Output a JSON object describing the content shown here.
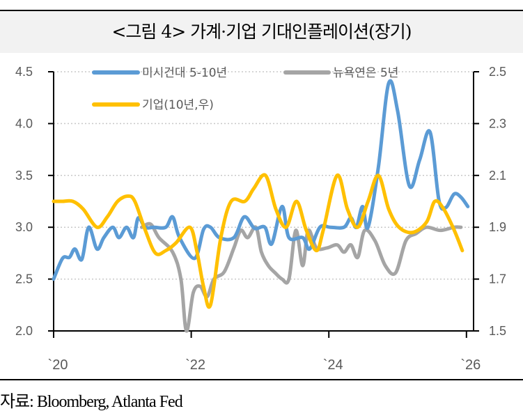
{
  "title": "<그림 4> 가계·기업 기대인플레이션(장기)",
  "source": "자료: Bloomberg, Atlanta Fed",
  "chart_data": {
    "type": "line",
    "title": "<그림 4> 가계·기업 기대인플레이션(장기)",
    "xlabel": "",
    "ylabel": "",
    "x_ticks": [
      {
        "value": 2020,
        "label": "`20"
      },
      {
        "value": 2022,
        "label": "`22"
      },
      {
        "value": 2024,
        "label": "`24"
      },
      {
        "value": 2026,
        "label": "`26"
      }
    ],
    "xlim": [
      2020,
      2026.05
    ],
    "ylim_left": [
      2.0,
      4.5
    ],
    "ylim_right": [
      1.5,
      2.5
    ],
    "y_ticks_left": [
      "2.0",
      "2.5",
      "3.0",
      "3.5",
      "4.0",
      "4.5"
    ],
    "y_ticks_right": [
      "1.5",
      "1.7",
      "1.9",
      "2.1",
      "2.3",
      "2.5"
    ],
    "grid": "horizontal-dotted",
    "legend_placement": "top",
    "series": [
      {
        "name": "미시건대 5-10년",
        "axis": "left",
        "color": "#5B9BD5",
        "x": [
          2020.0,
          2020.13,
          2020.23,
          2020.31,
          2020.41,
          2020.51,
          2020.63,
          2020.73,
          2020.86,
          2020.95,
          2021.06,
          2021.16,
          2021.23,
          2021.33,
          2021.46,
          2021.63,
          2021.73,
          2021.83,
          2022.05,
          2022.18,
          2022.28,
          2022.41,
          2022.62,
          2022.77,
          2022.92,
          2023.07,
          2023.17,
          2023.32,
          2023.42,
          2023.62,
          2023.72,
          2023.87,
          2024.02,
          2024.22,
          2024.32,
          2024.4,
          2024.49,
          2024.57,
          2024.72,
          2024.87,
          2025.0,
          2025.17,
          2025.32,
          2025.47,
          2025.6,
          2025.7,
          2025.82,
          2025.92,
          2026.02
        ],
        "values": [
          2.5,
          2.7,
          2.71,
          2.79,
          2.69,
          3.0,
          2.79,
          2.9,
          3.0,
          2.9,
          3.0,
          2.9,
          3.09,
          3.0,
          3.0,
          3.0,
          3.1,
          2.9,
          2.7,
          2.98,
          3.0,
          2.9,
          2.9,
          3.1,
          2.99,
          3.0,
          2.84,
          3.2,
          2.9,
          2.9,
          2.79,
          3.0,
          3.0,
          3.0,
          3.09,
          3.0,
          3.2,
          3.0,
          3.58,
          4.39,
          4.12,
          3.4,
          3.65,
          3.92,
          3.26,
          3.19,
          3.32,
          3.29,
          3.2
        ]
      },
      {
        "name": "뉴욕연은 5년",
        "axis": "left",
        "color": "#A5A5A5",
        "x": [
          2021.28,
          2021.41,
          2021.53,
          2021.73,
          2021.85,
          2021.93,
          2022.03,
          2022.13,
          2022.23,
          2022.33,
          2022.48,
          2022.62,
          2022.72,
          2022.82,
          2022.94,
          2023.02,
          2023.12,
          2023.22,
          2023.32,
          2023.42,
          2023.52,
          2023.62,
          2023.7,
          2023.82,
          2023.97,
          2024.12,
          2024.22,
          2024.32,
          2024.42,
          2024.52,
          2024.67,
          2024.82,
          2024.97,
          2025.12,
          2025.27,
          2025.42,
          2025.62,
          2025.82,
          2025.92
        ],
        "values": [
          3.0,
          3.03,
          2.9,
          2.76,
          2.5,
          2.0,
          2.37,
          2.43,
          2.33,
          2.5,
          2.57,
          2.8,
          2.97,
          2.9,
          3.0,
          2.76,
          2.63,
          2.56,
          2.5,
          2.5,
          2.97,
          2.63,
          2.97,
          2.8,
          2.8,
          2.83,
          2.76,
          2.83,
          2.71,
          2.97,
          2.87,
          2.63,
          2.56,
          2.87,
          2.94,
          3.0,
          2.97,
          3.0,
          3.0
        ]
      },
      {
        "name": "기업(10년,우)",
        "axis": "right",
        "color": "#FFC000",
        "x": [
          2020.0,
          2020.13,
          2020.28,
          2020.43,
          2020.63,
          2020.78,
          2020.93,
          2021.08,
          2021.18,
          2021.33,
          2021.48,
          2021.63,
          2021.78,
          2021.98,
          2022.08,
          2022.18,
          2022.28,
          2022.43,
          2022.58,
          2022.78,
          2022.91,
          2023.08,
          2023.23,
          2023.38,
          2023.53,
          2023.67,
          2023.82,
          2023.92,
          2024.12,
          2024.27,
          2024.42,
          2024.57,
          2024.72,
          2024.87,
          2025.02,
          2025.22,
          2025.42,
          2025.54,
          2025.67,
          2025.82,
          2025.94
        ],
        "values": [
          2.0,
          2.0,
          2.0,
          1.97,
          1.9,
          1.94,
          2.0,
          2.02,
          2.0,
          1.89,
          1.8,
          1.81,
          1.84,
          1.9,
          1.81,
          1.67,
          1.6,
          1.86,
          2.0,
          2.0,
          2.05,
          2.1,
          1.97,
          1.9,
          2.0,
          1.89,
          1.81,
          1.89,
          2.1,
          1.97,
          1.9,
          2.0,
          2.1,
          1.97,
          1.9,
          1.88,
          1.92,
          2.0,
          1.97,
          1.89,
          1.81
        ]
      }
    ]
  }
}
